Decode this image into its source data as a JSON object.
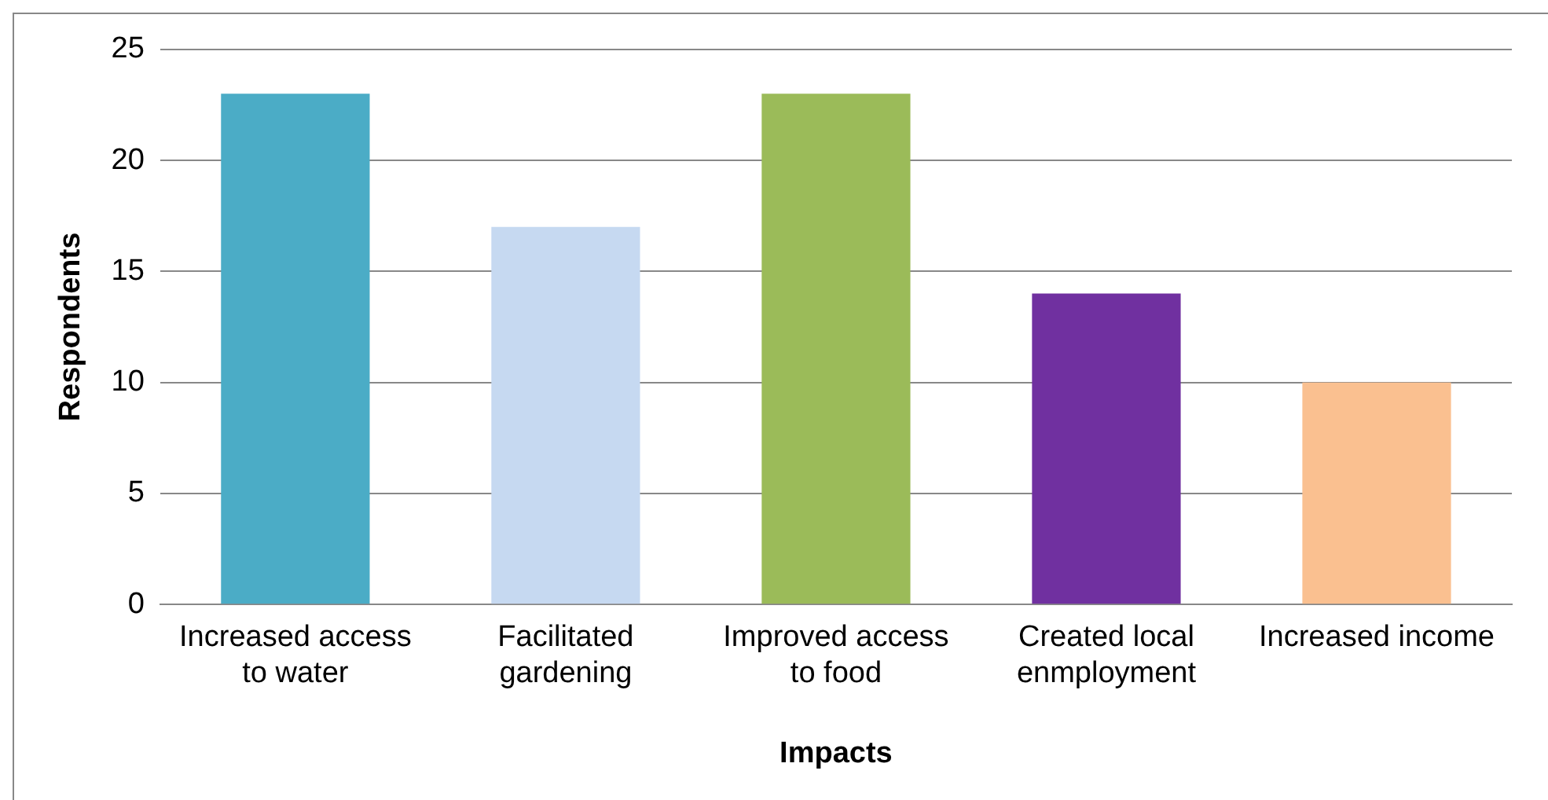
{
  "chart_data": {
    "type": "bar",
    "xlabel": "Impacts",
    "ylabel": "Respondents",
    "categories": [
      "Increased access to water",
      "Facilitated gardening",
      "Improved access to food",
      "Created local enmployment",
      "Increased income"
    ],
    "values": [
      23,
      17,
      23,
      14,
      10
    ],
    "colors": [
      "#4bacc6",
      "#c6d9f1",
      "#9bbb59",
      "#7030a0",
      "#fac090"
    ],
    "ylim": [
      0,
      25
    ],
    "yticks": [
      0,
      5,
      10,
      15,
      20,
      25
    ],
    "grid": "y",
    "legend": false
  }
}
